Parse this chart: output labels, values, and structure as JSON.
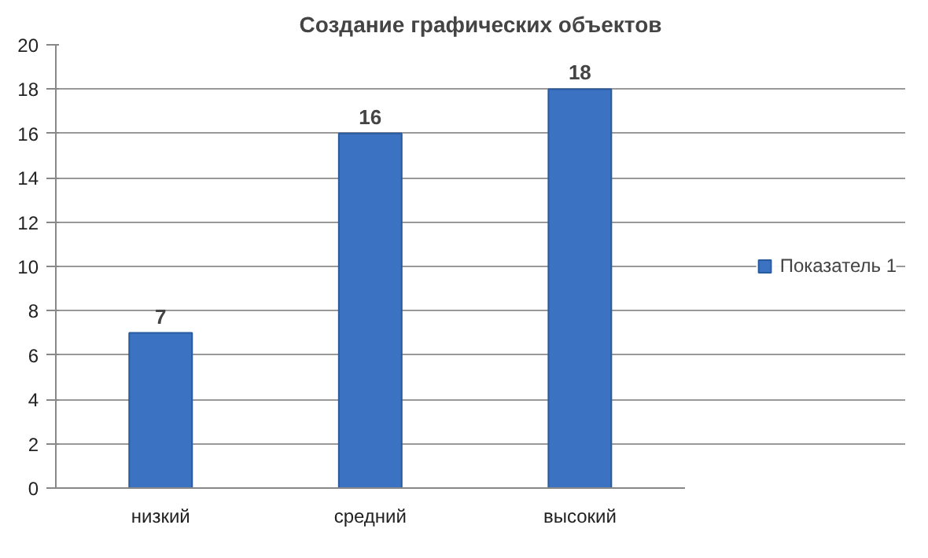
{
  "chart_data": {
    "type": "bar",
    "title": "Создание графических объектов",
    "categories": [
      "низкий",
      "средний",
      "высокий"
    ],
    "series": [
      {
        "name": "Показатель 1",
        "color": "#3c72c2",
        "values": [
          7,
          16,
          18
        ]
      }
    ],
    "ylim": [
      0,
      20
    ],
    "yticks": [
      0,
      2,
      4,
      6,
      8,
      10,
      12,
      14,
      16,
      18,
      20
    ],
    "grid": "y",
    "legend": "right",
    "data_labels": true
  }
}
